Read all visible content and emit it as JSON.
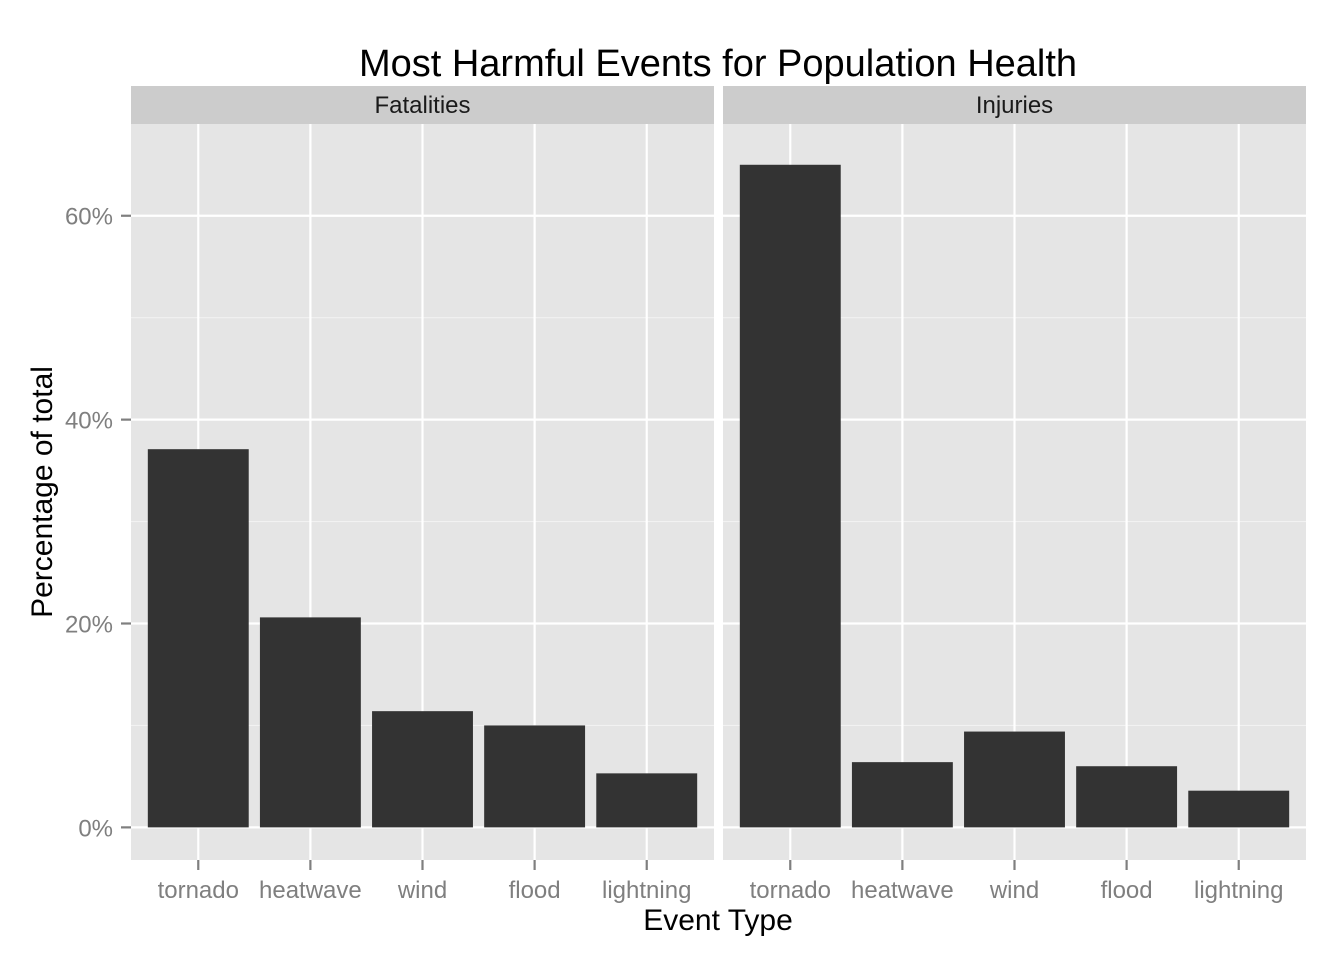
{
  "chart_data": {
    "type": "bar",
    "title": "Most Harmful Events for Population Health",
    "xlabel": "Event Type",
    "ylabel": "Percentage of total",
    "categories": [
      "tornado",
      "heatwave",
      "wind",
      "flood",
      "lightning"
    ],
    "y_ticks": [
      {
        "value": 0,
        "label": "0%"
      },
      {
        "value": 20,
        "label": "20%"
      },
      {
        "value": 40,
        "label": "40%"
      },
      {
        "value": 60,
        "label": "60%"
      }
    ],
    "ylim": [
      -3.2,
      69
    ],
    "grid": true,
    "facets": [
      {
        "name": "Fatalities",
        "values": [
          37.1,
          20.6,
          11.4,
          10.0,
          5.3
        ]
      },
      {
        "name": "Injuries",
        "values": [
          65.0,
          6.4,
          9.4,
          6.0,
          3.6
        ]
      }
    ],
    "colors": {
      "bar": "#333333",
      "panel": "#e5e5e5",
      "strip": "#cccccc"
    }
  }
}
